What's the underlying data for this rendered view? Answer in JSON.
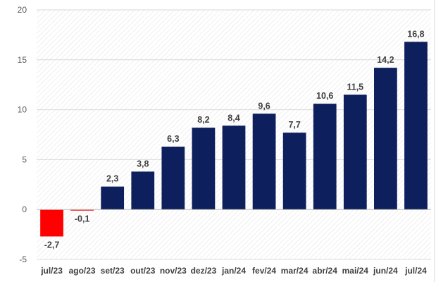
{
  "chart_data": {
    "type": "bar",
    "categories": [
      "jul/23",
      "ago/23",
      "set/23",
      "out/23",
      "nov/23",
      "dez/23",
      "jan/24",
      "fev/24",
      "mar/24",
      "abr/24",
      "mai/24",
      "jun/24",
      "jul/24"
    ],
    "values": [
      -2.7,
      -0.1,
      2.3,
      3.8,
      6.3,
      8.2,
      8.4,
      9.6,
      7.7,
      10.6,
      11.5,
      14.2,
      16.8
    ],
    "value_labels": [
      "-2,7",
      "-0,1",
      "2,3",
      "3,8",
      "6,3",
      "8,2",
      "8,4",
      "9,6",
      "7,7",
      "10,6",
      "11,5",
      "14,2",
      "16,8"
    ],
    "ylim": [
      -5,
      20
    ],
    "yticks": [
      -5,
      0,
      5,
      10,
      15,
      20
    ],
    "ytick_labels": [
      "-5",
      "0",
      "5",
      "10",
      "15",
      "20"
    ],
    "title": "",
    "xlabel": "",
    "ylabel": "",
    "grid": "horizontal hatched background",
    "colors": {
      "positive": "#0d1f5c",
      "negative": "#ff0000",
      "gridline": "#d9d9d9",
      "hatch": "#e4e4e4"
    }
  }
}
